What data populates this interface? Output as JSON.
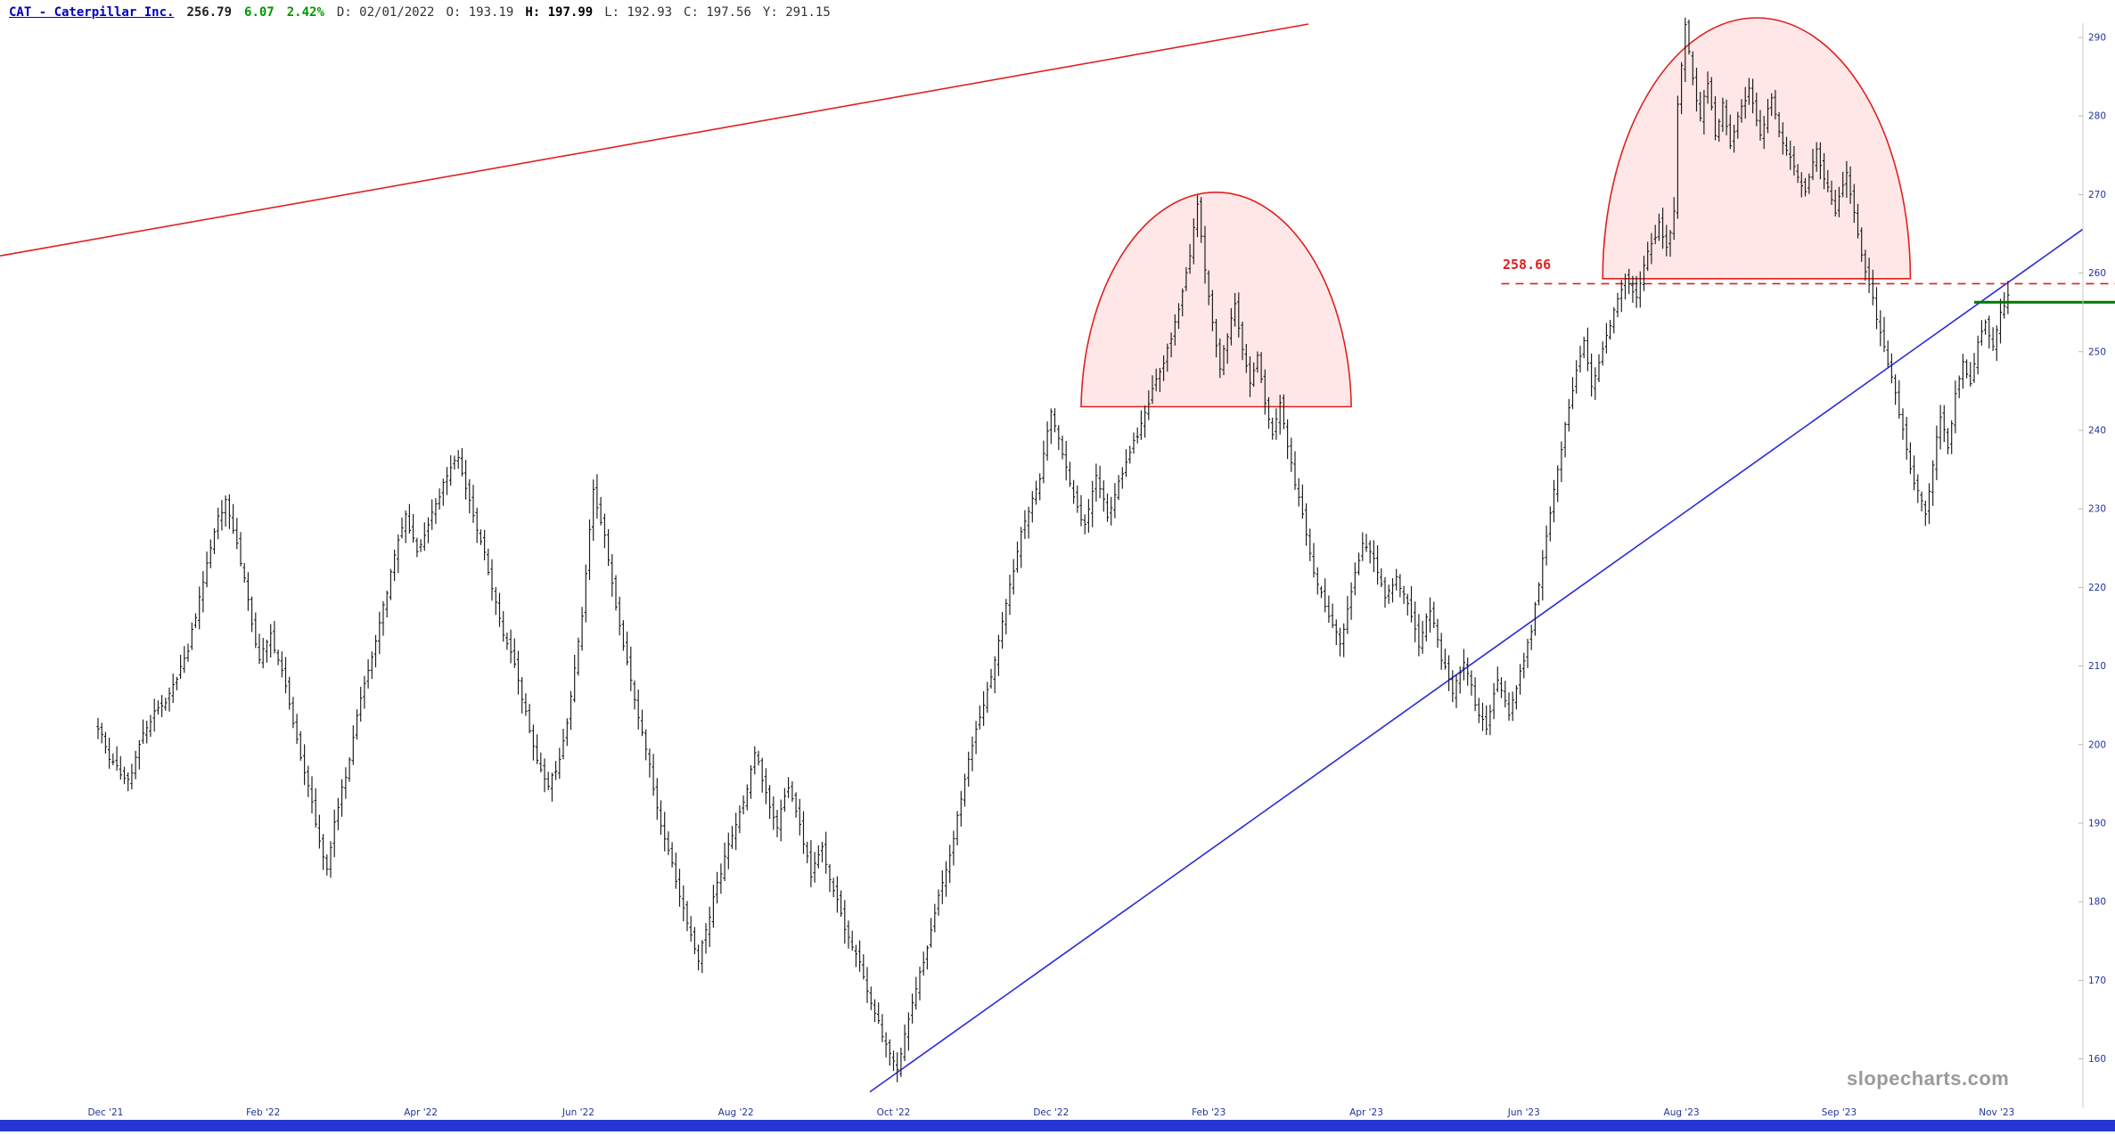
{
  "header": {
    "title": "CAT - Caterpillar Inc.",
    "price": "256.79",
    "change": "6.07",
    "change_pct": "2.42%",
    "ohlc_stats": [
      {
        "label": "D:",
        "value": "02/01/2022",
        "bold": false
      },
      {
        "label": "O:",
        "value": "193.19",
        "bold": false
      },
      {
        "label": "H:",
        "value": "197.99",
        "bold": true
      },
      {
        "label": "L:",
        "value": "192.93",
        "bold": false
      },
      {
        "label": "C:",
        "value": "197.56",
        "bold": false
      },
      {
        "label": "Y:",
        "value": "291.15",
        "bold": false
      }
    ]
  },
  "watermark": "slopecharts.com",
  "colors": {
    "bar": "#1a1a1a",
    "title": "#0000bb",
    "change": "#009700",
    "axis_text": "#223399",
    "axis_line": "#cccccc",
    "dome_stroke": "#e02020",
    "dome_fill": "rgba(255,70,70,0.13)",
    "dashed": "#e02020",
    "green": "#007700",
    "red_trendline": "#e02020",
    "blue_trendline": "#2a2ad8",
    "bottom_bar": "#2636d0",
    "watermark_color": "#9a9a9a"
  },
  "chart_data": {
    "type": "ohlc-bar",
    "symbol": "CAT",
    "title": "CAT - Caterpillar Inc.",
    "timeframe": "daily",
    "ylim": [
      154,
      294
    ],
    "y_ticks": [
      290,
      280,
      270,
      260,
      250,
      240,
      230,
      220,
      210,
      200,
      190,
      180,
      170,
      160
    ],
    "y_axis_side": "right",
    "x_ticks": [
      {
        "label": "Dec '21",
        "day": 2
      },
      {
        "label": "Feb '22",
        "day": 44
      },
      {
        "label": "Apr '22",
        "day": 86
      },
      {
        "label": "Jun '22",
        "day": 128
      },
      {
        "label": "Aug '22",
        "day": 170
      },
      {
        "label": "Oct '22",
        "day": 212
      },
      {
        "label": "Dec '22",
        "day": 254
      },
      {
        "label": "Feb '23",
        "day": 296
      },
      {
        "label": "Apr '23",
        "day": 338
      },
      {
        "label": "Jun '23",
        "day": 380
      },
      {
        "label": "Aug '23",
        "day": 422
      },
      {
        "label": "Sep '23",
        "day": 464
      },
      {
        "label": "Nov '23",
        "day": 506
      }
    ],
    "days_total": 510,
    "seed": 20231117,
    "close_anchors": [
      [
        0,
        202
      ],
      [
        4,
        198
      ],
      [
        8,
        195
      ],
      [
        12,
        201
      ],
      [
        16,
        205
      ],
      [
        20,
        208
      ],
      [
        24,
        213
      ],
      [
        28,
        221
      ],
      [
        32,
        229
      ],
      [
        34,
        231
      ],
      [
        37,
        226
      ],
      [
        40,
        219
      ],
      [
        43,
        211
      ],
      [
        46,
        214
      ],
      [
        49,
        209
      ],
      [
        52,
        203
      ],
      [
        55,
        197
      ],
      [
        58,
        190
      ],
      [
        61,
        185
      ],
      [
        63,
        190
      ],
      [
        66,
        196
      ],
      [
        70,
        205
      ],
      [
        74,
        214
      ],
      [
        78,
        222
      ],
      [
        82,
        228
      ],
      [
        85,
        224
      ],
      [
        88,
        228
      ],
      [
        92,
        233
      ],
      [
        96,
        237
      ],
      [
        100,
        230
      ],
      [
        104,
        222
      ],
      [
        108,
        215
      ],
      [
        112,
        209
      ],
      [
        116,
        200
      ],
      [
        120,
        195
      ],
      [
        123,
        198
      ],
      [
        126,
        206
      ],
      [
        129,
        216
      ],
      [
        132,
        232
      ],
      [
        135,
        226
      ],
      [
        138,
        216
      ],
      [
        141,
        209
      ],
      [
        144,
        203
      ],
      [
        147,
        196
      ],
      [
        150,
        189
      ],
      [
        153,
        184
      ],
      [
        156,
        178
      ],
      [
        160,
        172
      ],
      [
        164,
        180
      ],
      [
        168,
        187
      ],
      [
        172,
        193
      ],
      [
        175,
        199
      ],
      [
        178,
        194
      ],
      [
        181,
        190
      ],
      [
        184,
        195
      ],
      [
        187,
        189
      ],
      [
        190,
        183
      ],
      [
        193,
        187
      ],
      [
        196,
        181
      ],
      [
        199,
        176
      ],
      [
        202,
        172
      ],
      [
        205,
        168
      ],
      [
        208,
        164
      ],
      [
        211,
        160
      ],
      [
        213,
        158
      ],
      [
        216,
        164
      ],
      [
        219,
        170
      ],
      [
        222,
        176
      ],
      [
        225,
        182
      ],
      [
        228,
        189
      ],
      [
        231,
        196
      ],
      [
        234,
        202
      ],
      [
        237,
        208
      ],
      [
        240,
        214
      ],
      [
        243,
        220
      ],
      [
        246,
        226
      ],
      [
        249,
        231
      ],
      [
        251,
        234
      ],
      [
        254,
        242
      ],
      [
        257,
        237
      ],
      [
        260,
        231
      ],
      [
        263,
        228
      ],
      [
        266,
        234
      ],
      [
        269,
        229
      ],
      [
        272,
        234
      ],
      [
        275,
        238
      ],
      [
        278,
        241
      ],
      [
        281,
        245
      ],
      [
        284,
        249
      ],
      [
        287,
        254
      ],
      [
        289,
        258
      ],
      [
        291,
        263
      ],
      [
        293,
        269
      ],
      [
        295,
        261
      ],
      [
        297,
        254
      ],
      [
        299,
        249
      ],
      [
        301,
        253
      ],
      [
        303,
        257
      ],
      [
        305,
        251
      ],
      [
        307,
        247
      ],
      [
        309,
        251
      ],
      [
        311,
        245
      ],
      [
        313,
        240
      ],
      [
        315,
        244
      ],
      [
        317,
        238
      ],
      [
        319,
        233
      ],
      [
        322,
        227
      ],
      [
        325,
        221
      ],
      [
        328,
        216
      ],
      [
        331,
        212
      ],
      [
        334,
        219
      ],
      [
        337,
        225
      ],
      [
        340,
        222
      ],
      [
        343,
        217
      ],
      [
        346,
        221
      ],
      [
        349,
        218
      ],
      [
        352,
        213
      ],
      [
        355,
        217
      ],
      [
        358,
        211
      ],
      [
        361,
        207
      ],
      [
        364,
        211
      ],
      [
        367,
        205
      ],
      [
        370,
        202
      ],
      [
        373,
        208
      ],
      [
        376,
        204
      ],
      [
        379,
        209
      ],
      [
        382,
        215
      ],
      [
        385,
        224
      ],
      [
        388,
        233
      ],
      [
        391,
        241
      ],
      [
        394,
        249
      ],
      [
        396,
        252
      ],
      [
        398,
        247
      ],
      [
        401,
        251
      ],
      [
        404,
        256
      ],
      [
        407,
        260
      ],
      [
        410,
        257
      ],
      [
        413,
        262
      ],
      [
        416,
        266
      ],
      [
        418,
        263
      ],
      [
        420,
        268
      ],
      [
        421,
        281
      ],
      [
        423,
        292
      ],
      [
        425,
        286
      ],
      [
        427,
        281
      ],
      [
        429,
        285
      ],
      [
        431,
        278
      ],
      [
        433,
        282
      ],
      [
        435,
        276
      ],
      [
        437,
        280
      ],
      [
        440,
        284
      ],
      [
        443,
        279
      ],
      [
        446,
        283
      ],
      [
        449,
        277
      ],
      [
        452,
        273
      ],
      [
        455,
        270
      ],
      [
        458,
        275
      ],
      [
        461,
        271
      ],
      [
        463,
        268
      ],
      [
        466,
        273
      ],
      [
        469,
        266
      ],
      [
        472,
        259
      ],
      [
        475,
        252
      ],
      [
        478,
        246
      ],
      [
        481,
        240
      ],
      [
        484,
        234
      ],
      [
        487,
        229
      ],
      [
        489,
        236
      ],
      [
        491,
        242
      ],
      [
        493,
        238
      ],
      [
        495,
        245
      ],
      [
        497,
        250
      ],
      [
        499,
        247
      ],
      [
        501,
        251
      ],
      [
        503,
        254
      ],
      [
        505,
        251
      ],
      [
        507,
        255
      ],
      [
        509,
        257
      ]
    ],
    "annotations": {
      "domes": [
        {
          "name": "rounded-top-1",
          "center_day": 298,
          "half_width_days": 36,
          "base_price": 243,
          "peak_price": 271
        },
        {
          "name": "rounded-top-2",
          "center_day": 442,
          "half_width_days": 41,
          "base_price": 259.3,
          "peak_price": 292.5
        }
      ],
      "trendlines": [
        {
          "name": "upper-red-trendline",
          "color_key": "red_trendline",
          "d1": -26.1,
          "p1": 262.2,
          "d2": 322.6,
          "p2": 291.7
        },
        {
          "name": "rising-blue-trendline",
          "color_key": "blue_trendline",
          "d1": 205.7,
          "p1": 155.8,
          "d2": 529,
          "p2": 265.6
        }
      ],
      "dashed_level": {
        "price": 258.66,
        "label": "258.66",
        "start_day": 374
      },
      "green_level": {
        "price": 256.3,
        "start_day": 500
      }
    }
  }
}
